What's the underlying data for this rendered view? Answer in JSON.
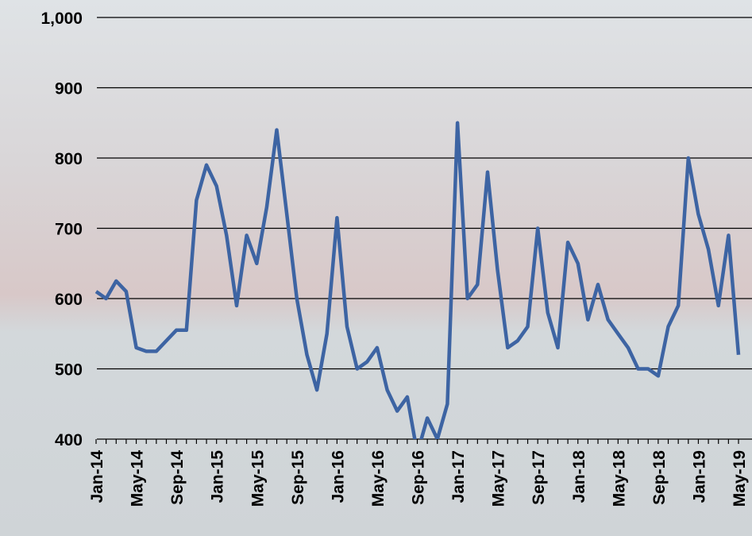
{
  "chart_data": {
    "type": "line",
    "categories": [
      "Jan-14",
      null,
      null,
      null,
      "May-14",
      null,
      null,
      null,
      "Sep-14",
      null,
      null,
      null,
      "Jan-15",
      null,
      null,
      null,
      "May-15",
      null,
      null,
      null,
      "Sep-15",
      null,
      null,
      null,
      "Jan-16",
      null,
      null,
      null,
      "May-16",
      null,
      null,
      null,
      "Sep-16",
      null,
      null,
      null,
      "Jan-17",
      null,
      null,
      null,
      "May-17",
      null,
      null,
      null,
      "Sep-17",
      null,
      null,
      null,
      "Jan-18",
      null,
      null,
      null,
      "May-18",
      null,
      null,
      null,
      "Sep-18",
      null,
      null,
      null,
      "Jan-19",
      null,
      null,
      null,
      "May-19"
    ],
    "values": [
      610,
      600,
      625,
      610,
      530,
      525,
      525,
      540,
      555,
      555,
      740,
      790,
      760,
      690,
      590,
      690,
      650,
      730,
      840,
      720,
      600,
      520,
      470,
      550,
      715,
      560,
      500,
      510,
      530,
      470,
      440,
      460,
      380,
      430,
      400,
      450,
      850,
      600,
      620,
      780,
      640,
      530,
      540,
      560,
      700,
      580,
      530,
      680,
      650,
      570,
      620,
      570,
      550,
      530,
      500,
      500,
      490,
      560,
      590,
      800,
      720,
      670,
      590,
      690,
      520
    ],
    "color": "#3d64a3",
    "ylim": [
      400,
      1000
    ],
    "yticks": [
      400,
      500,
      600,
      700,
      800,
      900,
      {
        "value": 1000,
        "label": "1,000"
      }
    ],
    "grid": true
  }
}
